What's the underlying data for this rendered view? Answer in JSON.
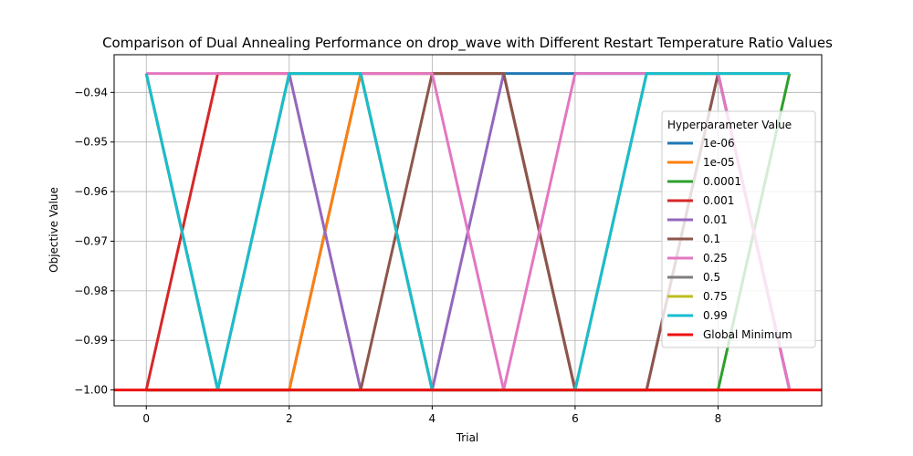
{
  "chart_data": {
    "type": "line",
    "title": "Comparison of Dual Annealing Performance on drop_wave with Different Restart Temperature Ratio Values",
    "xlabel": "Trial",
    "ylabel": "Objective Value",
    "xlim": [
      -0.45,
      9.45
    ],
    "ylim": [
      -1.0032,
      -0.9324
    ],
    "x_ticks": [
      0,
      2,
      4,
      6,
      8
    ],
    "y_ticks": [
      -1.0,
      -0.99,
      -0.98,
      -0.97,
      -0.96,
      -0.95,
      -0.94
    ],
    "y_tick_labels": [
      "−1.00",
      "−0.99",
      "−0.98",
      "−0.97",
      "−0.96",
      "−0.95",
      "−0.94"
    ],
    "grid": true,
    "legend_title": "Hyperparameter Value",
    "legend_position": "right",
    "x": [
      0,
      1,
      2,
      3,
      4,
      5,
      6,
      7,
      8,
      9
    ],
    "series": [
      {
        "name": "1e-06",
        "color": "#1f77b4",
        "values": [
          -1.0,
          -1.0,
          -1.0,
          -0.9362,
          -0.9362,
          -0.9362,
          -0.9362,
          -0.9362,
          -0.9362,
          -1.0
        ]
      },
      {
        "name": "1e-05",
        "color": "#ff7f0e",
        "values": [
          -1.0,
          -1.0,
          -1.0,
          -0.9362,
          -0.9362,
          -0.9362,
          -1.0,
          -1.0,
          -1.0,
          -1.0
        ]
      },
      {
        "name": "0.0001",
        "color": "#2ca02c",
        "values": [
          -1.0,
          -1.0,
          -1.0,
          -1.0,
          -1.0,
          -1.0,
          -1.0,
          -1.0,
          -1.0,
          -0.9362
        ]
      },
      {
        "name": "0.001",
        "color": "#d62728",
        "values": [
          -1.0,
          -0.9362,
          -0.9362,
          -0.9362,
          -1.0,
          -1.0,
          -1.0,
          -1.0,
          -1.0,
          -1.0
        ]
      },
      {
        "name": "0.01",
        "color": "#9467bd",
        "values": [
          -0.9362,
          -1.0,
          -0.9362,
          -1.0,
          -1.0,
          -0.9362,
          -1.0,
          -1.0,
          -0.9362,
          -1.0
        ]
      },
      {
        "name": "0.1",
        "color": "#8c564b",
        "values": [
          -1.0,
          -1.0,
          -1.0,
          -1.0,
          -0.9362,
          -0.9362,
          -1.0,
          -1.0,
          -0.9362,
          -1.0
        ]
      },
      {
        "name": "0.25",
        "color": "#e377c2",
        "values": [
          -0.9362,
          -0.9362,
          -0.9362,
          -0.9362,
          -0.9362,
          -1.0,
          -0.9362,
          -0.9362,
          -0.9362,
          -1.0
        ]
      },
      {
        "name": "0.5",
        "color": "#7f7f7f",
        "values": [
          -0.9362,
          -1.0,
          -0.9362,
          -0.9362,
          -1.0,
          -1.0,
          -1.0,
          -0.9362,
          -0.9362,
          -0.9362
        ]
      },
      {
        "name": "0.75",
        "color": "#bcbd22",
        "values": [
          -0.9362,
          -1.0,
          -0.9362,
          -0.9362,
          -1.0,
          -1.0,
          -1.0,
          -0.9362,
          -0.9362,
          -0.9362
        ]
      },
      {
        "name": "0.99",
        "color": "#17becf",
        "values": [
          -0.9362,
          -1.0,
          -0.9362,
          -0.9362,
          -1.0,
          -1.0,
          -1.0,
          -0.9362,
          -0.9362,
          -0.9362
        ]
      }
    ],
    "global_minimum": {
      "name": "Global Minimum",
      "color": "#ee1111",
      "value": -1.0
    }
  }
}
